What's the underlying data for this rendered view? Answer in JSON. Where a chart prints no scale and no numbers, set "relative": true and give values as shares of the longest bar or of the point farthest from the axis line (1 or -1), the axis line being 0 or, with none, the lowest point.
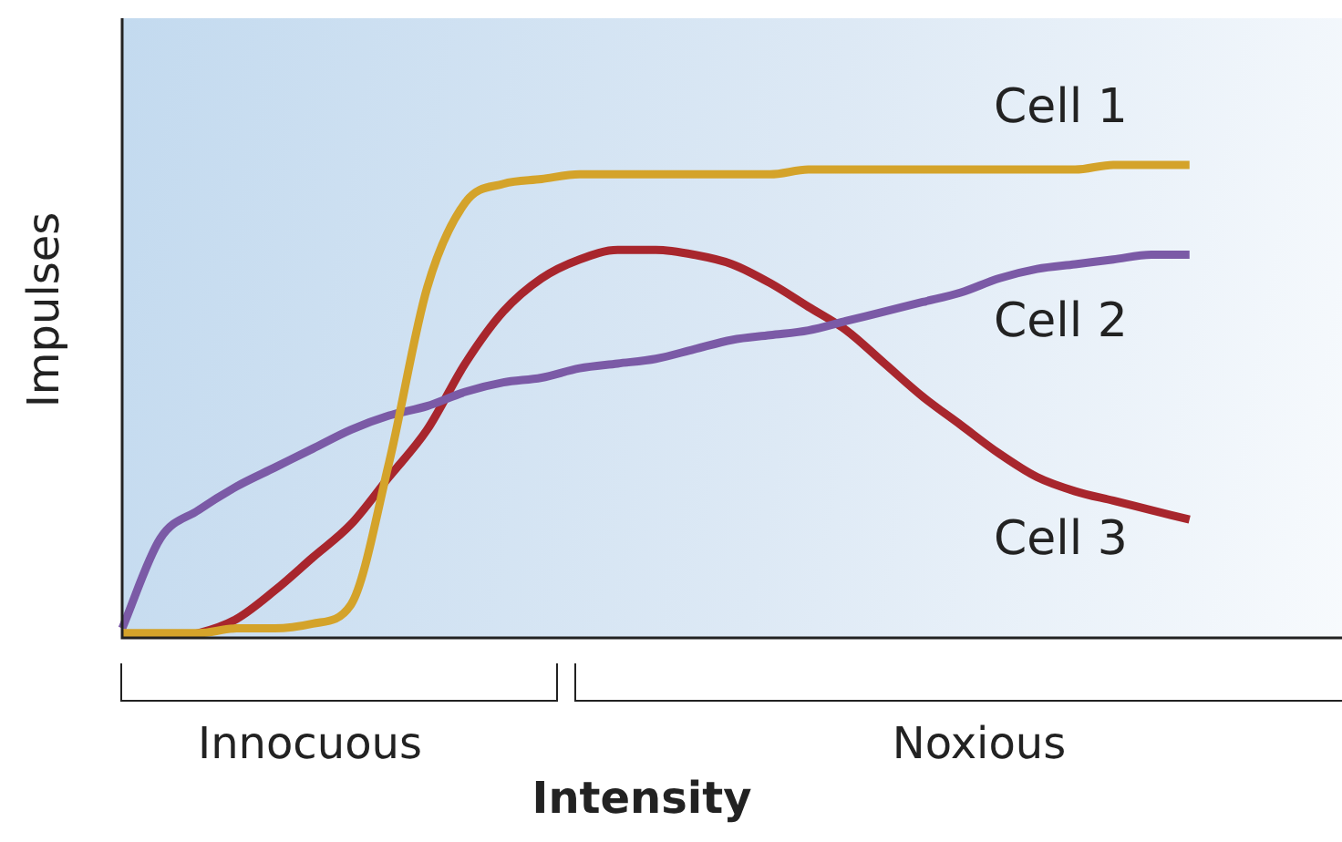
{
  "chart_data": {
    "type": "line",
    "relative": true,
    "xlabel": "Intensity",
    "ylabel": "Impulses",
    "legend": false,
    "marker": "none",
    "line_style": "solid",
    "annotations": [
      "Innocuous",
      "Noxious"
    ],
    "categories": [
      null,
      null,
      null,
      null,
      null,
      null,
      null,
      null,
      null,
      null,
      null,
      null,
      null,
      null,
      null,
      null,
      null,
      null,
      null,
      null,
      null,
      null,
      null,
      null,
      null,
      null,
      null,
      null,
      null,
      null,
      null,
      null,
      null
    ],
    "series": [
      {
        "name": "Cell 1",
        "color": "#d4a32a",
        "values": [
          0.01,
          0.01,
          0.01,
          0.02,
          0.02,
          0.03,
          0.07,
          0.37,
          0.74,
          0.92,
          0.96,
          0.97,
          0.98,
          0.98,
          0.98,
          0.98,
          0.98,
          0.98,
          0.99,
          0.99,
          0.99,
          0.99,
          0.99,
          0.99,
          0.99,
          0.99,
          1,
          1,
          1,
          null,
          null,
          null,
          null
        ]
      },
      {
        "name": "Cell 2",
        "color": "#7b5aa6",
        "values": [
          0.02,
          0.21,
          0.27,
          0.32,
          0.36,
          0.4,
          0.44,
          0.47,
          0.49,
          0.52,
          0.54,
          0.55,
          0.57,
          0.58,
          0.59,
          0.61,
          0.63,
          0.64,
          0.65,
          0.67,
          0.69,
          0.71,
          0.73,
          0.76,
          0.78,
          0.79,
          0.8,
          0.81,
          0.81,
          null,
          null,
          null,
          null
        ]
      },
      {
        "name": "Cell 3",
        "color": "#a8262d",
        "values": [
          0,
          0,
          0.01,
          0.04,
          0.1,
          0.17,
          0.24,
          0.34,
          0.44,
          0.58,
          0.69,
          0.76,
          0.8,
          0.82,
          0.82,
          0.81,
          0.79,
          0.75,
          0.7,
          0.65,
          0.58,
          0.51,
          0.45,
          0.39,
          0.34,
          0.31,
          0.29,
          0.27,
          0.25,
          null,
          null,
          null,
          null
        ]
      }
    ]
  }
}
